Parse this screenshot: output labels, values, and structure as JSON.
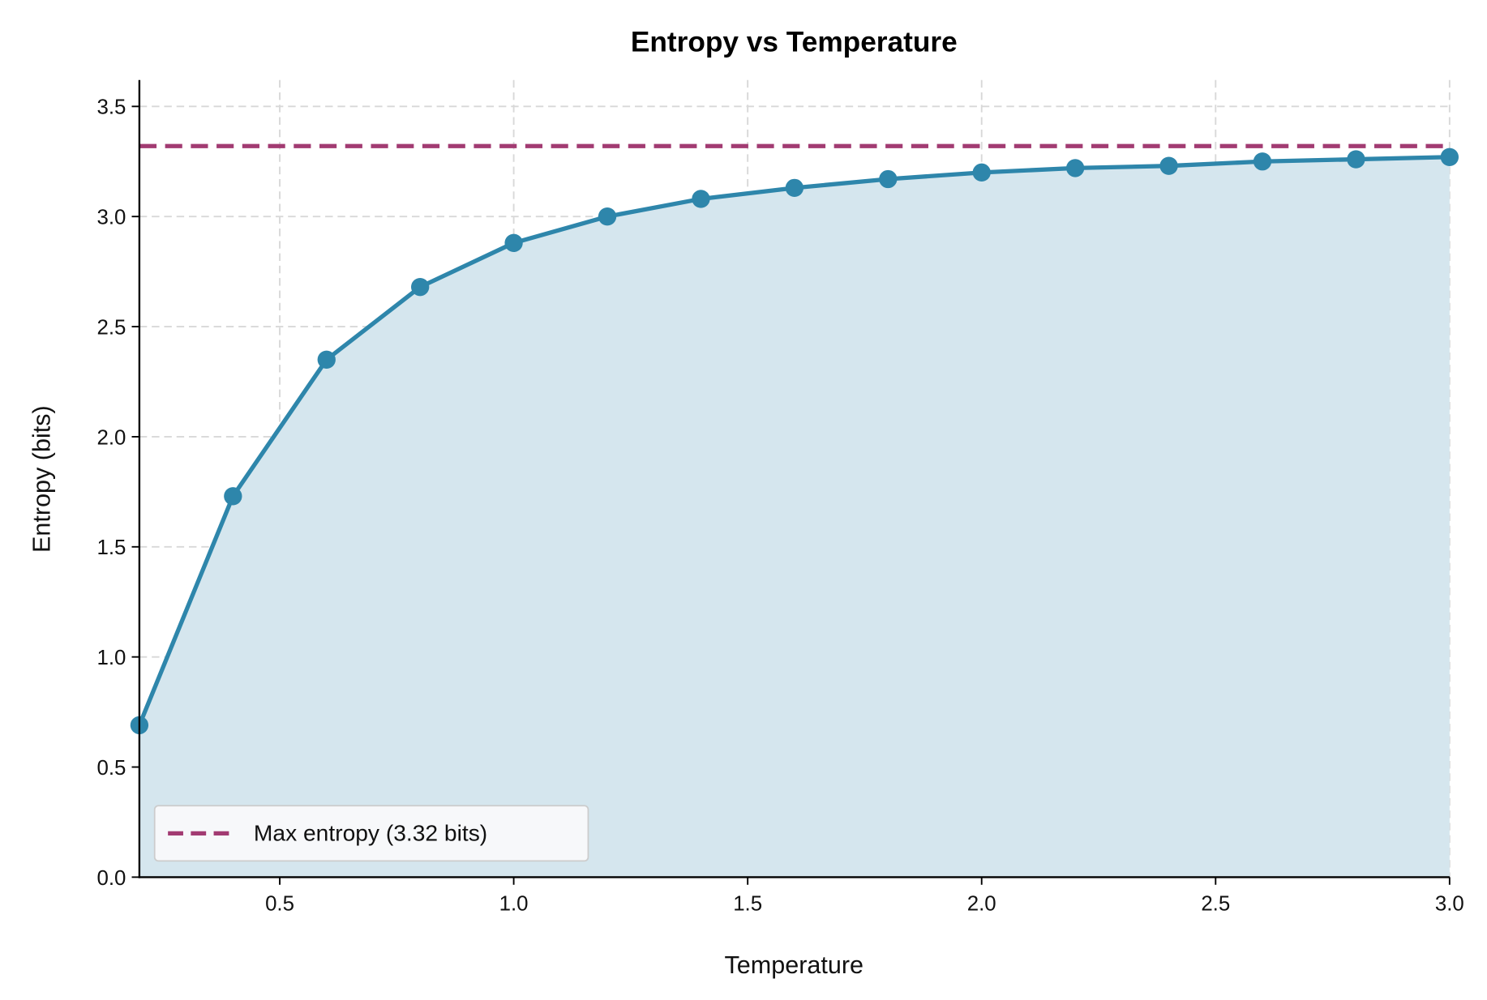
{
  "chart_data": {
    "type": "line",
    "title": "Entropy vs Temperature",
    "xlabel": "Temperature",
    "ylabel": "Entropy (bits)",
    "xlim": [
      0.2,
      3.0
    ],
    "ylim": [
      0,
      3.62
    ],
    "grid": true,
    "x_ticks": [
      "0.5",
      "1.0",
      "1.5",
      "2.0",
      "2.5",
      "3.0"
    ],
    "y_ticks": [
      "0.0",
      "0.5",
      "1.0",
      "1.5",
      "2.0",
      "2.5",
      "3.0",
      "3.5"
    ],
    "series": [
      {
        "x": [
          0.2,
          0.4,
          0.6,
          0.8,
          1.0,
          1.2,
          1.4,
          1.6,
          1.8,
          2.0,
          2.2,
          2.4,
          2.6,
          2.8,
          3.0
        ],
        "y": [
          0.69,
          1.73,
          2.35,
          2.68,
          2.88,
          3.0,
          3.08,
          3.13,
          3.17,
          3.2,
          3.22,
          3.23,
          3.25,
          3.26,
          3.27
        ],
        "color": "#2e86ab",
        "marker": "circle",
        "fill_below": true,
        "fill_color": "#d5e6ee"
      }
    ],
    "reference_lines": [
      {
        "name": "Max entropy (3.32 bits)",
        "y": 3.32,
        "style": "dashed",
        "color": "#a23b72"
      }
    ],
    "legend": {
      "placement": "bottom-left",
      "entries": [
        "Max entropy (3.32 bits)"
      ]
    }
  }
}
